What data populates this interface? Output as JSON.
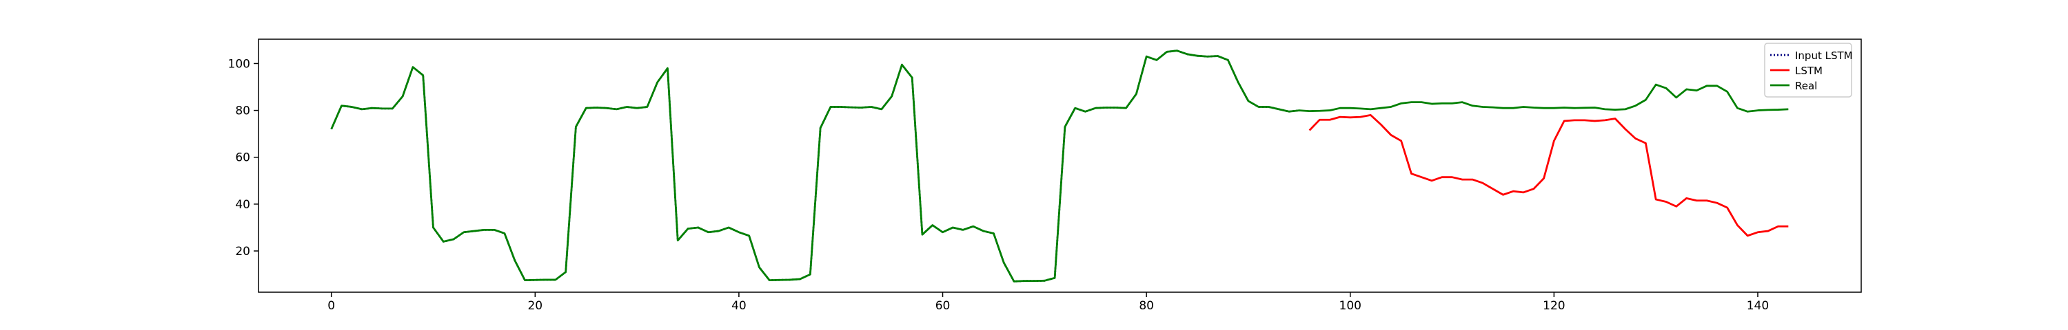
{
  "chart_data": {
    "type": "line",
    "xlim": [
      -7.15,
      150.15
    ],
    "ylim": [
      2.4,
      110.4
    ],
    "xticks": [
      0,
      20,
      40,
      60,
      80,
      100,
      120,
      140
    ],
    "yticks": [
      20,
      40,
      60,
      80,
      100
    ],
    "legend": "upper right",
    "series": [
      {
        "name": "Input LSTM",
        "color": "#000080",
        "style": "dotted",
        "x": [
          0,
          1,
          2,
          3,
          4,
          5,
          6,
          7,
          8,
          9,
          10,
          11,
          12,
          13,
          14,
          15,
          16,
          17,
          18,
          19,
          20,
          21,
          22,
          23,
          24,
          25,
          26,
          27,
          28,
          29,
          30,
          31,
          32,
          33,
          34,
          35,
          36,
          37,
          38,
          39,
          40,
          41,
          42,
          43,
          44,
          45,
          46,
          47,
          48,
          49,
          50,
          51,
          52,
          53,
          54,
          55,
          56,
          57,
          58,
          59,
          60,
          61,
          62,
          63,
          64,
          65,
          66,
          67,
          68,
          69,
          70,
          71,
          72,
          73,
          74,
          75,
          76,
          77,
          78,
          79,
          80,
          81,
          82,
          83,
          84,
          85,
          86,
          87,
          88,
          89,
          90,
          91,
          92,
          93,
          94,
          95
        ],
        "values": [
          72,
          82,
          81.5,
          80.5,
          81,
          80.8,
          80.8,
          86,
          98.5,
          95,
          30,
          24,
          25,
          28,
          28.5,
          29,
          29,
          27.5,
          16,
          7.5,
          7.6,
          7.7,
          7.7,
          11,
          73,
          81,
          81.2,
          81,
          80.5,
          81.5,
          81,
          81.5,
          92,
          98,
          24.5,
          29.5,
          30,
          28,
          28.5,
          30,
          28,
          26.5,
          13,
          7.5,
          7.6,
          7.7,
          8,
          10,
          72.5,
          81.5,
          81.5,
          81.3,
          81.2,
          81.5,
          80.5,
          86,
          99.5,
          94,
          27,
          31,
          28,
          30,
          29,
          30.5,
          28.5,
          27.5,
          15,
          7,
          7.2,
          7.2,
          7.3,
          8.5,
          73,
          81,
          79.5,
          81,
          81.2,
          81.2,
          81,
          87,
          103,
          101.5,
          105,
          105.5,
          104,
          103.3,
          103,
          103.2,
          101.5,
          92,
          84,
          81.5,
          81.5,
          80.5,
          79.5,
          80
        ]
      },
      {
        "name": "LSTM",
        "color": "#ff0000",
        "style": "solid",
        "x": [
          96,
          97,
          98,
          99,
          100,
          101,
          102,
          103,
          104,
          105,
          106,
          107,
          108,
          109,
          110,
          111,
          112,
          113,
          114,
          115,
          116,
          117,
          118,
          119,
          120,
          121,
          122,
          123,
          124,
          125,
          126,
          127,
          128,
          129,
          130,
          131,
          132,
          133,
          134,
          135,
          136,
          137,
          138,
          139,
          140,
          141,
          142,
          143
        ],
        "values": [
          71.5,
          76,
          76,
          77.2,
          77,
          77.2,
          78,
          74,
          69.5,
          67,
          53,
          51.5,
          50,
          51.5,
          51.5,
          50.5,
          50.5,
          49,
          46.5,
          44,
          45.5,
          45,
          46.5,
          51,
          67,
          75.5,
          75.8,
          75.8,
          75.5,
          75.8,
          76.5,
          72,
          68,
          66,
          42,
          41,
          39,
          42.5,
          41.5,
          41.5,
          40.5,
          38.5,
          31,
          26.5,
          28,
          28.5,
          30.5,
          30.5
        ]
      },
      {
        "name": "Real",
        "color": "#008000",
        "style": "solid",
        "x": [
          0,
          1,
          2,
          3,
          4,
          5,
          6,
          7,
          8,
          9,
          10,
          11,
          12,
          13,
          14,
          15,
          16,
          17,
          18,
          19,
          20,
          21,
          22,
          23,
          24,
          25,
          26,
          27,
          28,
          29,
          30,
          31,
          32,
          33,
          34,
          35,
          36,
          37,
          38,
          39,
          40,
          41,
          42,
          43,
          44,
          45,
          46,
          47,
          48,
          49,
          50,
          51,
          52,
          53,
          54,
          55,
          56,
          57,
          58,
          59,
          60,
          61,
          62,
          63,
          64,
          65,
          66,
          67,
          68,
          69,
          70,
          71,
          72,
          73,
          74,
          75,
          76,
          77,
          78,
          79,
          80,
          81,
          82,
          83,
          84,
          85,
          86,
          87,
          88,
          89,
          90,
          91,
          92,
          93,
          94,
          95,
          96,
          97,
          98,
          99,
          100,
          101,
          102,
          103,
          104,
          105,
          106,
          107,
          108,
          109,
          110,
          111,
          112,
          113,
          114,
          115,
          116,
          117,
          118,
          119,
          120,
          121,
          122,
          123,
          124,
          125,
          126,
          127,
          128,
          129,
          130,
          131,
          132,
          133,
          134,
          135,
          136,
          137,
          138,
          139,
          140,
          141,
          142,
          143
        ],
        "values": [
          72,
          82,
          81.5,
          80.5,
          81,
          80.8,
          80.8,
          86,
          98.5,
          95,
          30,
          24,
          25,
          28,
          28.5,
          29,
          29,
          27.5,
          16,
          7.5,
          7.6,
          7.7,
          7.7,
          11,
          73,
          81,
          81.2,
          81,
          80.5,
          81.5,
          81,
          81.5,
          92,
          98,
          24.5,
          29.5,
          30,
          28,
          28.5,
          30,
          28,
          26.5,
          13,
          7.5,
          7.6,
          7.7,
          8,
          10,
          72.5,
          81.5,
          81.5,
          81.3,
          81.2,
          81.5,
          80.5,
          86,
          99.5,
          94,
          27,
          31,
          28,
          30,
          29,
          30.5,
          28.5,
          27.5,
          15,
          7,
          7.2,
          7.2,
          7.3,
          8.5,
          73,
          81,
          79.5,
          81,
          81.2,
          81.2,
          81,
          87,
          103,
          101.5,
          105,
          105.5,
          104,
          103.3,
          103,
          103.2,
          101.5,
          92,
          84,
          81.5,
          81.5,
          80.5,
          79.5,
          80,
          79.7,
          79.8,
          80,
          81,
          81,
          80.8,
          80.5,
          81,
          81.5,
          83,
          83.5,
          83.5,
          82.8,
          83,
          83,
          83.5,
          82,
          81.5,
          81.3,
          81,
          81,
          81.5,
          81.2,
          81,
          81,
          81.2,
          81,
          81.1,
          81.2,
          80.5,
          80.3,
          80.5,
          82,
          84.5,
          91,
          89.5,
          85.5,
          89,
          88.5,
          90.5,
          90.5,
          88,
          81,
          79.5,
          80,
          80.2,
          80.3,
          80.5
        ]
      }
    ]
  }
}
